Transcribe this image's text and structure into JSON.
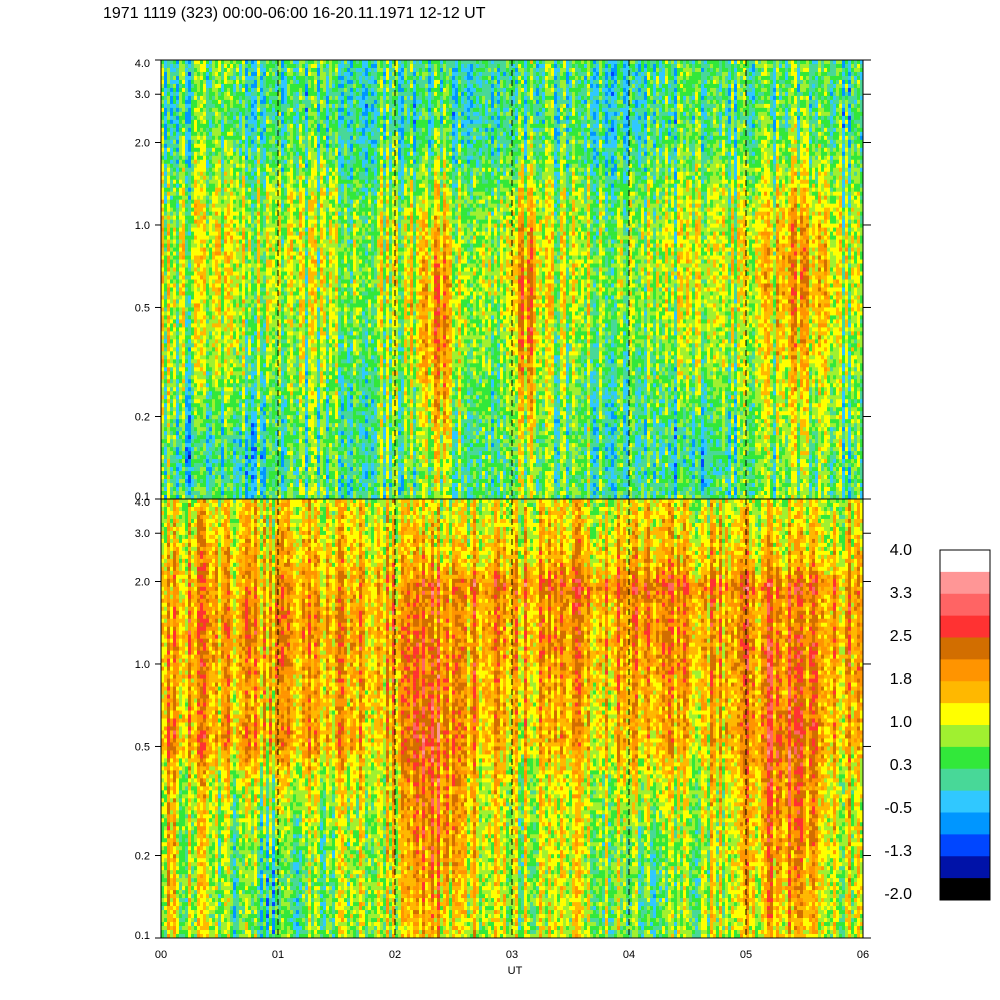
{
  "title": "1971 1119 (323) 00:00-06:00 16-20.11.1971  12-12 UT",
  "chart_data": [
    {
      "type": "heatmap",
      "panel": "top",
      "xlabel": "",
      "ylabel": "",
      "y_scale": "log",
      "ylim": [
        0.1,
        4.0
      ],
      "y_ticks": [
        {
          "value": 0.1,
          "label": "0.1"
        },
        {
          "value": 0.2,
          "label": "0.2"
        },
        {
          "value": 0.5,
          "label": "0.5"
        },
        {
          "value": 1.0,
          "label": "1.0"
        },
        {
          "value": 2.0,
          "label": "2.0"
        },
        {
          "value": 3.0,
          "label": "3.0"
        },
        {
          "value": 4.0,
          "label": "4.0"
        }
      ],
      "xlim": [
        0,
        6
      ],
      "hour_lines": [
        1,
        2,
        3,
        4,
        5
      ]
    },
    {
      "type": "heatmap",
      "panel": "bottom",
      "xlabel": "UT",
      "ylabel": "",
      "y_scale": "log",
      "ylim": [
        0.1,
        4.0
      ],
      "y_ticks": [
        {
          "value": 0.1,
          "label": "0.1"
        },
        {
          "value": 0.2,
          "label": "0.2"
        },
        {
          "value": 0.5,
          "label": "0.5"
        },
        {
          "value": 1.0,
          "label": "1.0"
        },
        {
          "value": 2.0,
          "label": "2.0"
        },
        {
          "value": 3.0,
          "label": "3.0"
        },
        {
          "value": 4.0,
          "label": "4.0"
        }
      ],
      "xlim": [
        0,
        6
      ],
      "x_ticks": [
        {
          "value": 0,
          "label": "00"
        },
        {
          "value": 1,
          "label": "01"
        },
        {
          "value": 2,
          "label": "02"
        },
        {
          "value": 3,
          "label": "03"
        },
        {
          "value": 4,
          "label": "04"
        },
        {
          "value": 5,
          "label": "05"
        },
        {
          "value": 6,
          "label": "06"
        }
      ],
      "hour_lines": [
        1,
        2,
        3,
        4,
        5
      ]
    }
  ],
  "colorbar": {
    "range": [
      -2.0,
      4.0
    ],
    "colors": [
      "#000000",
      "#0012a8",
      "#0046ff",
      "#0096ff",
      "#30c8ff",
      "#48d898",
      "#32e83a",
      "#a0f030",
      "#ffff00",
      "#ffb800",
      "#ff9400",
      "#d26e00",
      "#ff3232",
      "#ff6464",
      "#ff9696",
      "#ffffff"
    ],
    "labels": [
      "4.0",
      "3.3",
      "2.5",
      "1.8",
      "1.0",
      "0.3",
      "-0.5",
      "-1.3",
      "-2.0"
    ]
  }
}
